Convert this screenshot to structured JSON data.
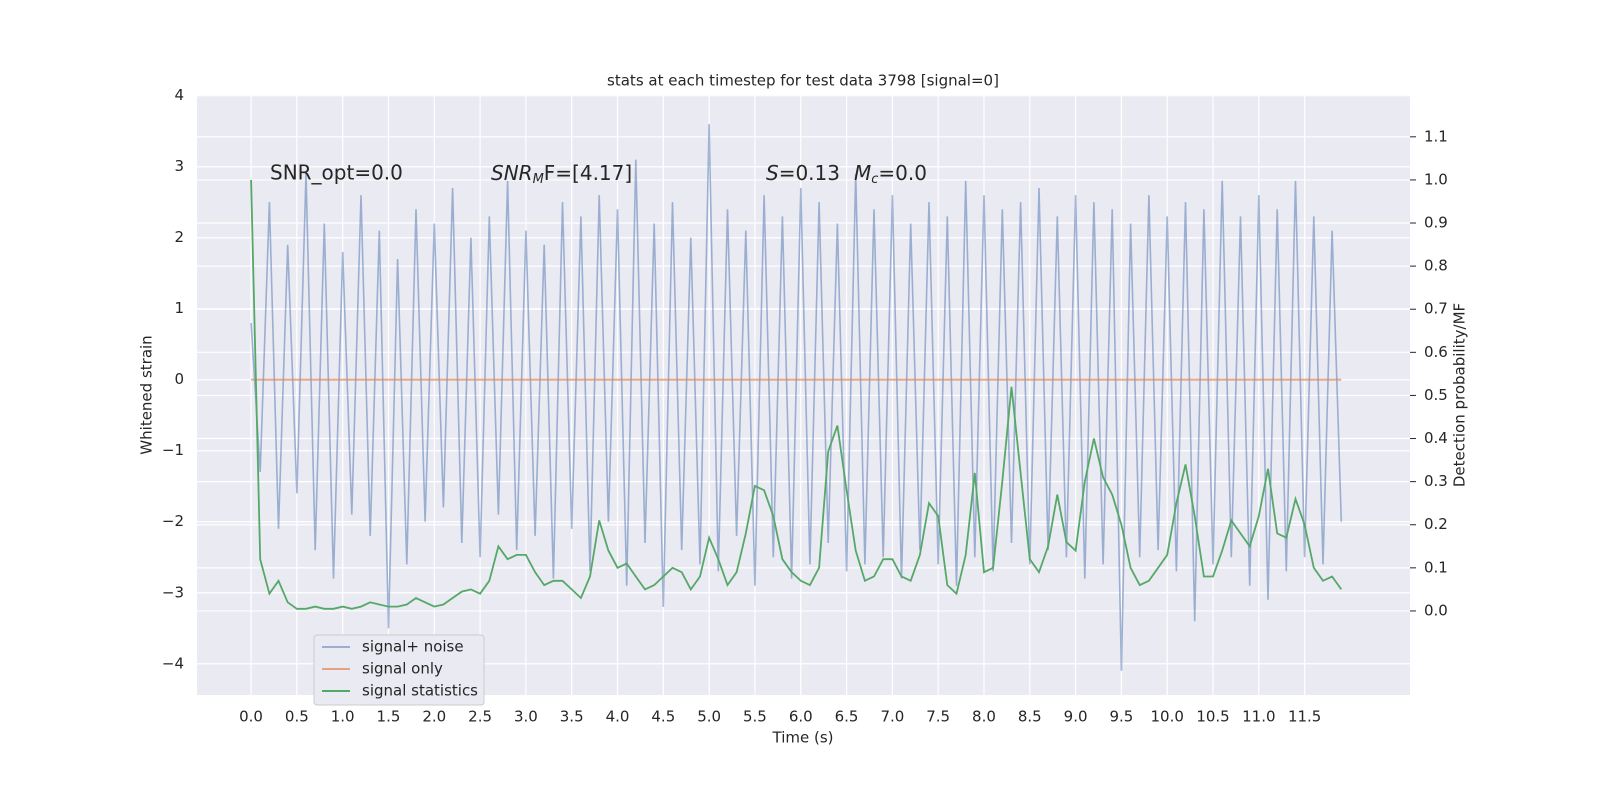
{
  "chart_data": {
    "type": "line",
    "title": "stats at each timestep for test data 3798 [signal=0]",
    "xlabel": "Time (s)",
    "ylabel": "Whitened strain",
    "y2label": "Detection probability/MF",
    "annotations": [
      "SNR_opt=0.0",
      [
        "SNR",
        "M",
        "F=[4.17]"
      ],
      [
        "S",
        "=0.13",
        "M",
        "c",
        "=0.0"
      ]
    ],
    "x": [
      0,
      0.1,
      0.2,
      0.3,
      0.4,
      0.5,
      0.6,
      0.7,
      0.8,
      0.9,
      1,
      1.1,
      1.2,
      1.3,
      1.4,
      1.5,
      1.6,
      1.7,
      1.8,
      1.9,
      2,
      2.1,
      2.2,
      2.3,
      2.4,
      2.5,
      2.6,
      2.7,
      2.8,
      2.9,
      3,
      3.1,
      3.2,
      3.3,
      3.4,
      3.5,
      3.6,
      3.7,
      3.8,
      3.9,
      4,
      4.1,
      4.2,
      4.3,
      4.4,
      4.5,
      4.6,
      4.7,
      4.8,
      4.9,
      5,
      5.1,
      5.2,
      5.3,
      5.4,
      5.5,
      5.6,
      5.7,
      5.8,
      5.9,
      6,
      6.1,
      6.2,
      6.3,
      6.4,
      6.5,
      6.6,
      6.7,
      6.8,
      6.9,
      7,
      7.1,
      7.2,
      7.3,
      7.4,
      7.5,
      7.6,
      7.7,
      7.8,
      7.9,
      8,
      8.1,
      8.2,
      8.3,
      8.4,
      8.5,
      8.6,
      8.7,
      8.8,
      8.9,
      9,
      9.1,
      9.2,
      9.3,
      9.4,
      9.5,
      9.6,
      9.7,
      9.8,
      9.9,
      10,
      10.1,
      10.2,
      10.3,
      10.4,
      10.5,
      10.6,
      10.7,
      10.8,
      10.9,
      11,
      11.1,
      11.2,
      11.3,
      11.4,
      11.5,
      11.6,
      11.7,
      11.8,
      11.9
    ],
    "series": [
      {
        "name": "signal+ noise",
        "color": "#4c72b0",
        "opacity": 0.5,
        "values": [
          0.8,
          -1.3,
          2.5,
          -2.1,
          1.9,
          -1.6,
          2.9,
          -2.4,
          2.2,
          -2.8,
          1.8,
          -1.9,
          2.6,
          -2.2,
          2.1,
          -3.5,
          1.7,
          -2.6,
          2.4,
          -2.0,
          2.2,
          -1.8,
          2.7,
          -2.3,
          2.0,
          -2.5,
          2.3,
          -1.9,
          2.8,
          -2.4,
          2.1,
          -2.2,
          1.9,
          -2.8,
          2.5,
          -2.1,
          2.3,
          -2.7,
          2.6,
          -2.0,
          2.4,
          -2.9,
          3.1,
          -2.3,
          2.2,
          -3.2,
          2.5,
          -2.4,
          2.0,
          -2.6,
          3.6,
          -2.7,
          2.4,
          -2.2,
          2.1,
          -2.9,
          2.6,
          -2.5,
          2.3,
          -2.8,
          2.7,
          -2.6,
          2.5,
          -2.3,
          2.2,
          -2.7,
          2.9,
          -2.6,
          2.4,
          -2.5,
          2.6,
          -2.8,
          2.2,
          -2.4,
          2.5,
          -2.6,
          2.3,
          -2.9,
          2.8,
          -2.5,
          2.6,
          -2.7,
          2.4,
          -2.3,
          2.5,
          -2.6,
          2.7,
          -2.4,
          2.3,
          -2.5,
          2.6,
          -2.8,
          2.5,
          -2.6,
          2.4,
          -4.1,
          2.2,
          -2.5,
          2.6,
          -2.4,
          2.3,
          -2.7,
          2.5,
          -3.4,
          2.4,
          -2.6,
          2.8,
          -2.5,
          2.3,
          -2.9,
          2.6,
          -3.1,
          2.4,
          -2.7,
          2.8,
          -2.5,
          2.3,
          -2.6,
          2.1,
          -2.0
        ]
      },
      {
        "name": "signal only",
        "color": "#dd8452",
        "opacity": 0.7,
        "values": [
          0,
          0,
          0,
          0,
          0,
          0,
          0,
          0,
          0,
          0,
          0,
          0,
          0,
          0,
          0,
          0,
          0,
          0,
          0,
          0,
          0,
          0,
          0,
          0,
          0,
          0,
          0,
          0,
          0,
          0,
          0,
          0,
          0,
          0,
          0,
          0,
          0,
          0,
          0,
          0,
          0,
          0,
          0,
          0,
          0,
          0,
          0,
          0,
          0,
          0,
          0,
          0,
          0,
          0,
          0,
          0,
          0,
          0,
          0,
          0,
          0,
          0,
          0,
          0,
          0,
          0,
          0,
          0,
          0,
          0,
          0,
          0,
          0,
          0,
          0,
          0,
          0,
          0,
          0,
          0,
          0,
          0,
          0,
          0,
          0,
          0,
          0,
          0,
          0,
          0,
          0,
          0,
          0,
          0,
          0,
          0,
          0,
          0,
          0,
          0,
          0,
          0,
          0,
          0,
          0,
          0,
          0,
          0,
          0,
          0,
          0,
          0,
          0,
          0,
          0,
          0,
          0,
          0,
          0,
          0
        ]
      },
      {
        "name": "signal statistics",
        "color": "#55a868",
        "opacity": 1,
        "axis": "y2",
        "values": [
          1.0,
          0.12,
          0.04,
          0.07,
          0.02,
          0.005,
          0.005,
          0.01,
          0.005,
          0.005,
          0.01,
          0.005,
          0.01,
          0.02,
          0.015,
          0.01,
          0.01,
          0.015,
          0.03,
          0.02,
          0.01,
          0.015,
          0.03,
          0.045,
          0.05,
          0.04,
          0.07,
          0.15,
          0.12,
          0.13,
          0.13,
          0.09,
          0.06,
          0.07,
          0.07,
          0.05,
          0.03,
          0.08,
          0.21,
          0.14,
          0.1,
          0.11,
          0.08,
          0.05,
          0.06,
          0.08,
          0.1,
          0.09,
          0.05,
          0.08,
          0.17,
          0.12,
          0.06,
          0.09,
          0.18,
          0.29,
          0.28,
          0.22,
          0.12,
          0.09,
          0.07,
          0.06,
          0.1,
          0.37,
          0.43,
          0.28,
          0.14,
          0.07,
          0.08,
          0.12,
          0.12,
          0.08,
          0.07,
          0.13,
          0.25,
          0.22,
          0.06,
          0.04,
          0.13,
          0.32,
          0.09,
          0.1,
          0.3,
          0.52,
          0.32,
          0.12,
          0.09,
          0.15,
          0.27,
          0.16,
          0.14,
          0.3,
          0.4,
          0.31,
          0.27,
          0.2,
          0.1,
          0.06,
          0.07,
          0.1,
          0.13,
          0.25,
          0.34,
          0.22,
          0.08,
          0.08,
          0.14,
          0.21,
          0.18,
          0.15,
          0.22,
          0.33,
          0.18,
          0.17,
          0.26,
          0.2,
          0.1,
          0.07,
          0.08,
          0.05
        ]
      }
    ],
    "xlim": [
      -0.59,
      12.65
    ],
    "xticks": [
      {
        "value": 0,
        "label": "0.0"
      },
      0.5,
      {
        "value": 1,
        "label": "1.0"
      },
      1.5,
      {
        "value": 2,
        "label": "2.0"
      },
      2.5,
      {
        "value": 3,
        "label": "3.0"
      },
      3.5,
      {
        "value": 4,
        "label": "4.0"
      },
      4.5,
      {
        "value": 5,
        "label": "5.0"
      },
      5.5,
      {
        "value": 6,
        "label": "6.0"
      },
      6.5,
      {
        "value": 7,
        "label": "7.0"
      },
      7.5,
      {
        "value": 8,
        "label": "8.0"
      },
      8.5,
      {
        "value": 9,
        "label": "9.0"
      },
      9.5,
      {
        "value": 10,
        "label": "10.0"
      },
      10.5,
      {
        "value": 11,
        "label": "11.0"
      },
      11.5
    ],
    "ylim": [
      -4.44,
      4.01
    ],
    "yticks": [
      {
        "value": -4,
        "label": "−4"
      },
      {
        "value": -3,
        "label": "−3"
      },
      {
        "value": -2,
        "label": "−2"
      },
      {
        "value": -1,
        "label": "−1"
      },
      0,
      1,
      2,
      3,
      4
    ],
    "y2lim": [
      -0.195,
      1.197
    ],
    "y2ticks": [
      {
        "value": 0,
        "label": "0.0"
      },
      0.1,
      0.2,
      0.3,
      0.4,
      0.5,
      0.6,
      0.7,
      0.8,
      0.9,
      {
        "value": 1,
        "label": "1.0"
      },
      1.1
    ],
    "grid": true,
    "legend": "lower left"
  }
}
